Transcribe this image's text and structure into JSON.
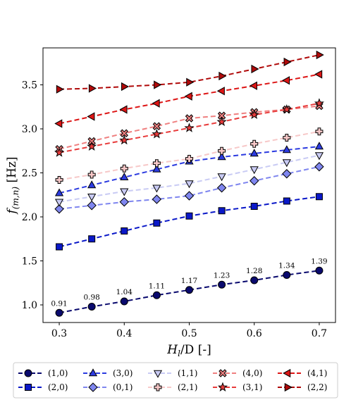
{
  "chart_data": {
    "type": "line",
    "x": [
      0.3,
      0.35,
      0.4,
      0.45,
      0.5,
      0.55,
      0.6,
      0.65,
      0.7
    ],
    "xlabel": "H_l/D [-]",
    "ylabel": "f_(m,n) [Hz]",
    "xlim": [
      0.275,
      0.725
    ],
    "ylim": [
      0.8,
      3.92
    ],
    "xticks": [
      "0.3",
      "0.4",
      "0.5",
      "0.6",
      "0.7"
    ],
    "yticks": [
      "1.0",
      "1.5",
      "2.0",
      "2.5",
      "3.0",
      "3.5"
    ],
    "grid": false,
    "legend_position": "bottom-outside",
    "series": [
      {
        "name": "(1,0)",
        "color": "#0a0a6e",
        "marker": "circle",
        "values": [
          0.91,
          0.98,
          1.04,
          1.11,
          1.17,
          1.23,
          1.28,
          1.34,
          1.39
        ],
        "data_labels": [
          "0.91",
          "0.98",
          "1.04",
          "1.11",
          "1.17",
          "1.23",
          "1.28",
          "1.34",
          "1.39"
        ]
      },
      {
        "name": "(2,0)",
        "color": "#0a18c8",
        "marker": "square",
        "values": [
          1.66,
          1.75,
          1.84,
          1.93,
          2.01,
          2.07,
          2.12,
          2.18,
          2.23
        ]
      },
      {
        "name": "(3,0)",
        "color": "#2c3be0",
        "marker": "triangle-up",
        "values": [
          2.27,
          2.36,
          2.45,
          2.54,
          2.63,
          2.68,
          2.72,
          2.76,
          2.8
        ]
      },
      {
        "name": "(0,1)",
        "color": "#7f86ef",
        "marker": "diamond",
        "values": [
          2.09,
          2.13,
          2.17,
          2.2,
          2.24,
          2.33,
          2.41,
          2.49,
          2.57
        ]
      },
      {
        "name": "(1,1)",
        "color": "#c9cbf4",
        "marker": "triangle-down",
        "values": [
          2.17,
          2.23,
          2.29,
          2.33,
          2.38,
          2.46,
          2.54,
          2.62,
          2.7
        ]
      },
      {
        "name": "(2,1)",
        "color": "#f7c8c8",
        "marker": "plus",
        "values": [
          2.42,
          2.48,
          2.55,
          2.61,
          2.66,
          2.75,
          2.83,
          2.9,
          2.97
        ]
      },
      {
        "name": "(4,0)",
        "color": "#ef8080",
        "marker": "x-filled",
        "values": [
          2.77,
          2.86,
          2.95,
          3.03,
          3.12,
          3.15,
          3.19,
          3.22,
          3.26
        ]
      },
      {
        "name": "(3,1)",
        "color": "#e83b3b",
        "marker": "star",
        "values": [
          2.73,
          2.8,
          2.87,
          2.94,
          3.01,
          3.08,
          3.16,
          3.22,
          3.29
        ]
      },
      {
        "name": "(4,1)",
        "color": "#dd1515",
        "marker": "triangle-left",
        "values": [
          3.06,
          3.14,
          3.22,
          3.29,
          3.37,
          3.43,
          3.49,
          3.55,
          3.62
        ]
      },
      {
        "name": "(2,2)",
        "color": "#b00a0a",
        "marker": "triangle-right",
        "values": [
          3.45,
          3.46,
          3.48,
          3.5,
          3.53,
          3.6,
          3.68,
          3.76,
          3.84
        ]
      }
    ]
  }
}
